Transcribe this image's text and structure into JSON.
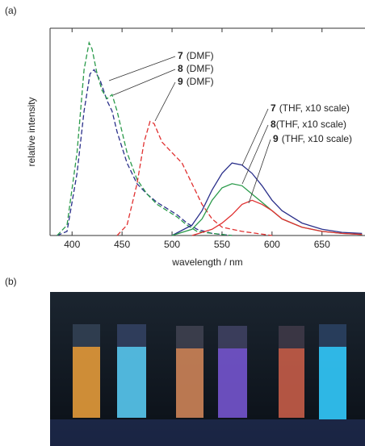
{
  "panel_labels": [
    "(a)",
    "(b)"
  ],
  "chart_data": {
    "type": "line",
    "xlabel": "wavelength / nm",
    "ylabel": "relative intensity",
    "xlim": [
      378,
      693
    ],
    "xticks": [
      400,
      450,
      500,
      550,
      600,
      650
    ],
    "ylim": [
      0,
      1
    ],
    "annotations": [
      {
        "number": "7",
        "text": "(DMF)"
      },
      {
        "number": "8",
        "text": "(DMF)"
      },
      {
        "number": "9",
        "text": "(DMF)"
      },
      {
        "number": "7",
        "text": "(THF, x10 scale)"
      },
      {
        "number": "8",
        "text": "(THF, x10 scale)"
      },
      {
        "number": "9",
        "text": "(THF, x10 scale)"
      }
    ],
    "series": [
      {
        "color": "#2a2f8a",
        "linestyle": "dashed",
        "x": [
          385,
          395,
          405,
          412,
          418,
          422,
          428,
          435,
          440,
          445,
          455,
          465,
          475,
          485,
          495,
          505,
          515,
          525,
          540,
          560
        ],
        "values": [
          0,
          0.02,
          0.3,
          0.6,
          0.78,
          0.8,
          0.75,
          0.65,
          0.6,
          0.5,
          0.35,
          0.25,
          0.2,
          0.16,
          0.13,
          0.1,
          0.06,
          0.03,
          0.01,
          0
        ]
      },
      {
        "color": "#2a9a4a",
        "linestyle": "dashed",
        "x": [
          385,
          395,
          405,
          412,
          417,
          420,
          425,
          430,
          435,
          440,
          445,
          455,
          465,
          475,
          485,
          495,
          505,
          515,
          525,
          540,
          560
        ],
        "values": [
          0,
          0.05,
          0.4,
          0.8,
          0.93,
          0.9,
          0.78,
          0.7,
          0.66,
          0.68,
          0.6,
          0.4,
          0.27,
          0.2,
          0.15,
          0.12,
          0.09,
          0.05,
          0.02,
          0.01,
          0
        ]
      },
      {
        "color": "#e03030",
        "linestyle": "dashed",
        "x": [
          445,
          455,
          465,
          472,
          478,
          482,
          490,
          500,
          510,
          520,
          530,
          540,
          550,
          570,
          600
        ],
        "values": [
          0,
          0.05,
          0.25,
          0.45,
          0.55,
          0.54,
          0.45,
          0.4,
          0.35,
          0.25,
          0.15,
          0.08,
          0.04,
          0.02,
          0
        ]
      },
      {
        "color": "#2a2f8a",
        "linestyle": "solid",
        "x": [
          500,
          520,
          530,
          540,
          550,
          560,
          570,
          580,
          590,
          600,
          610,
          620,
          630,
          650,
          670,
          690
        ],
        "values": [
          0,
          0.05,
          0.12,
          0.22,
          0.3,
          0.35,
          0.34,
          0.3,
          0.24,
          0.17,
          0.12,
          0.09,
          0.06,
          0.03,
          0.015,
          0.01
        ]
      },
      {
        "color": "#2a9a4a",
        "linestyle": "solid",
        "x": [
          500,
          520,
          530,
          540,
          550,
          560,
          570,
          580,
          590,
          600,
          610,
          620,
          630,
          650,
          670,
          690
        ],
        "values": [
          0,
          0.03,
          0.08,
          0.17,
          0.23,
          0.25,
          0.24,
          0.2,
          0.16,
          0.12,
          0.08,
          0.06,
          0.04,
          0.02,
          0.01,
          0.005
        ]
      },
      {
        "color": "#e03030",
        "linestyle": "solid",
        "x": [
          520,
          540,
          550,
          560,
          570,
          580,
          590,
          600,
          610,
          620,
          630,
          650,
          670,
          690
        ],
        "values": [
          0,
          0.03,
          0.06,
          0.1,
          0.15,
          0.17,
          0.15,
          0.12,
          0.08,
          0.06,
          0.04,
          0.02,
          0.01,
          0.005
        ]
      }
    ]
  }
}
